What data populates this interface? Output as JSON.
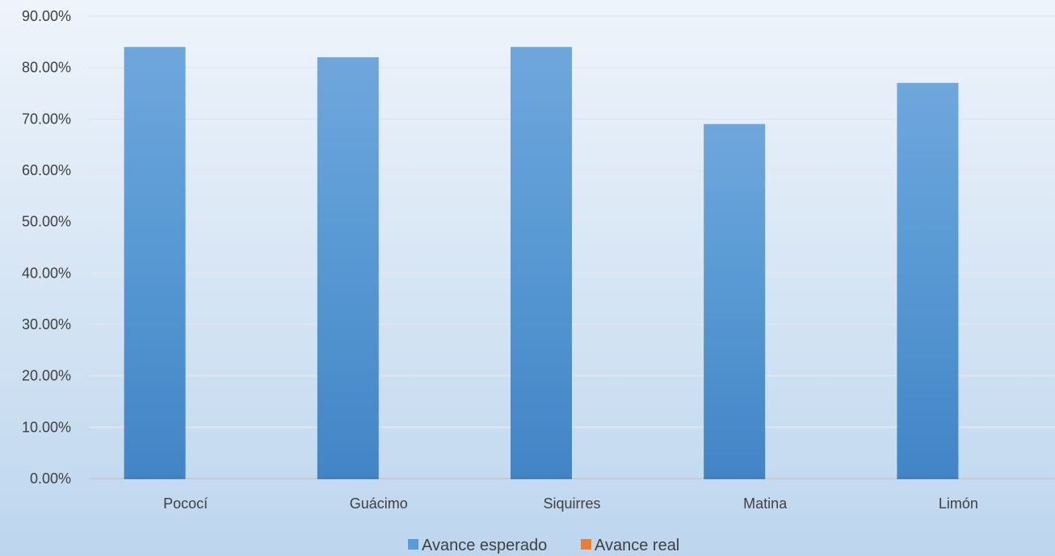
{
  "chart_data": {
    "type": "bar",
    "title": "",
    "xlabel": "",
    "ylabel": "",
    "categories": [
      "Pococí",
      "Guácimo",
      "Siquirres",
      "Matina",
      "Limón"
    ],
    "series": [
      {
        "name": "Avance esperado",
        "color": "#5b9bd5",
        "values": [
          84,
          82,
          84,
          69,
          77
        ]
      },
      {
        "name": "Avance real",
        "color": "#ed7d31",
        "values": [
          0,
          0,
          0,
          0,
          0
        ]
      }
    ],
    "ylim": [
      0,
      90
    ],
    "y_ticks": [
      0,
      10,
      20,
      30,
      40,
      50,
      60,
      70,
      80,
      90
    ],
    "y_tick_labels": [
      "0.00%",
      "10.00%",
      "20.00%",
      "30.00%",
      "40.00%",
      "50.00%",
      "60.00%",
      "70.00%",
      "80.00%",
      "90.00%"
    ],
    "grid": true,
    "legend_position": "bottom"
  }
}
